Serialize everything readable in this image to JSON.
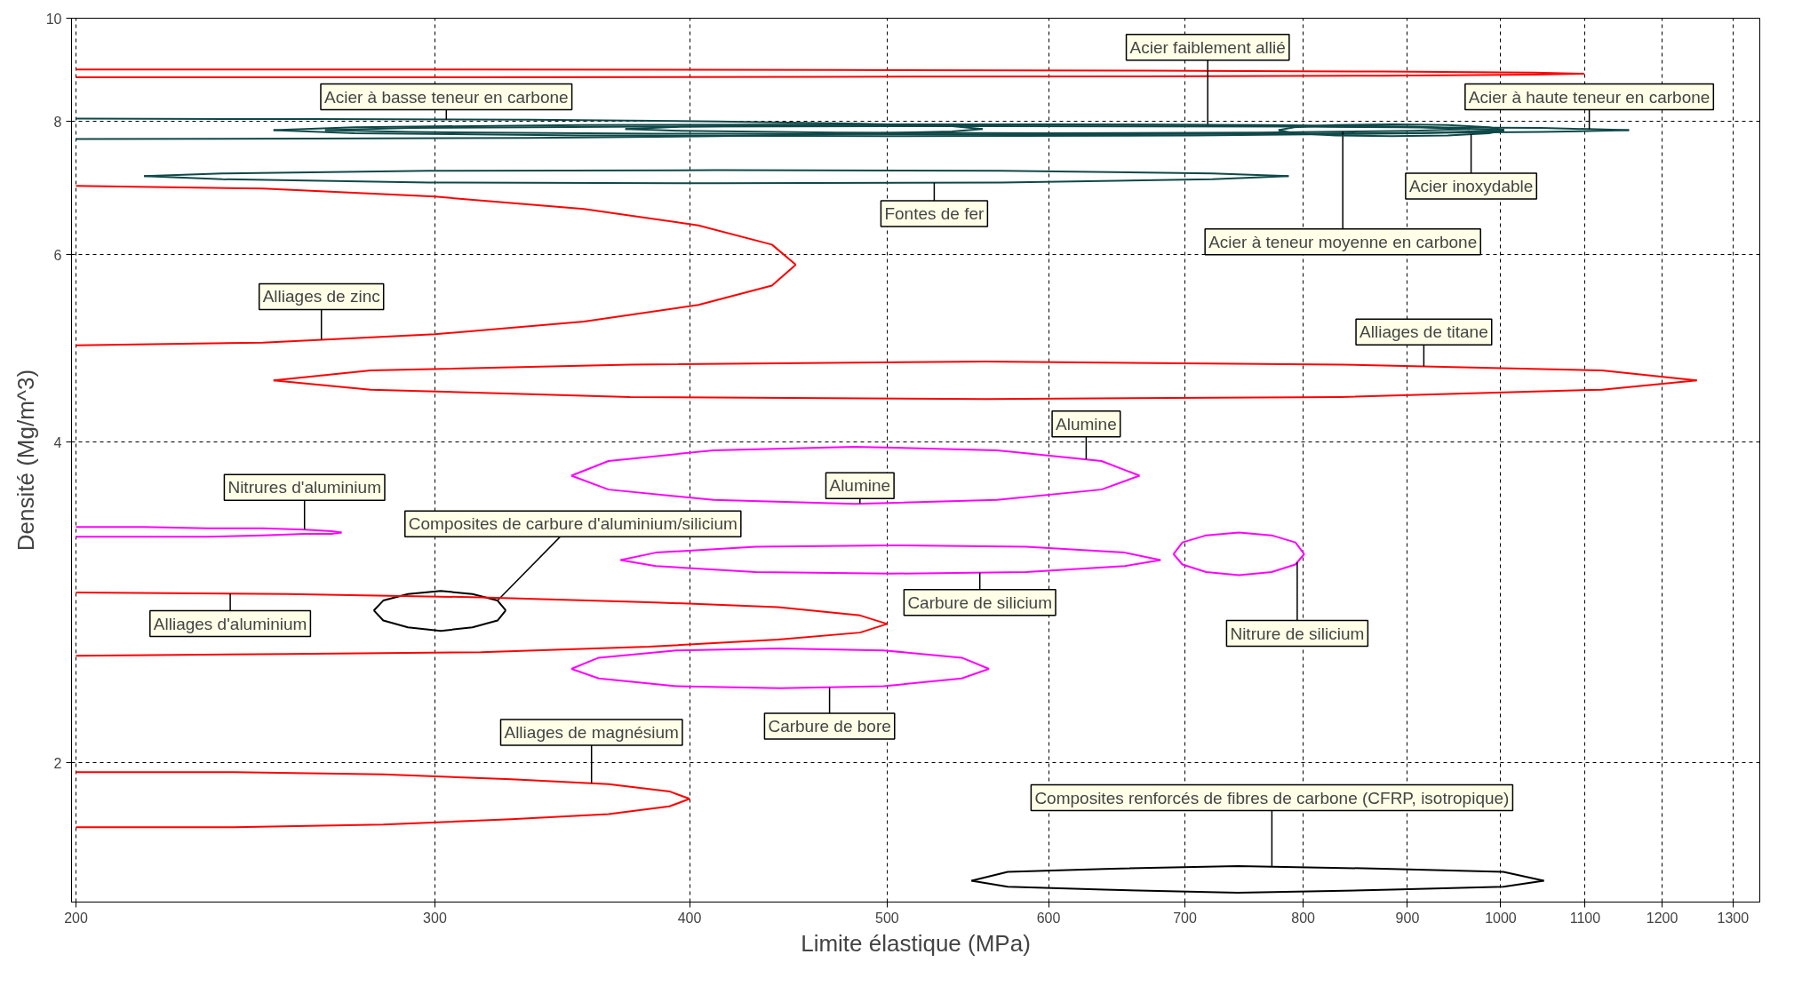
{
  "chart_data": {
    "type": "line",
    "xlabel": "Limite élastique (MPa)",
    "ylabel": "Densité (Mg/m^3)",
    "log": "xy",
    "xlim": [
      199,
      1340
    ],
    "ylim": [
      1.48,
      10
    ],
    "xticks": [
      200,
      300,
      400,
      500,
      600,
      700,
      800,
      900,
      1000,
      1100,
      1200,
      1300
    ],
    "yticks": [
      2,
      4,
      6,
      8,
      10
    ],
    "grid": true,
    "series": [
      {
        "color": "#ff0000",
        "x": [
          200,
          311,
          469,
          667,
          875,
          1038,
          1099
        ],
        "values": [
          8.95,
          8.95,
          8.94,
          8.93,
          8.91,
          8.89,
          8.87
        ]
      },
      {
        "color": "#ff0000",
        "x": [
          200,
          311,
          469,
          667,
          875,
          1038,
          1099
        ],
        "values": [
          8.8,
          8.8,
          8.81,
          8.82,
          8.83,
          8.85,
          8.87
        ]
      },
      {
        "name": "Acier à basse teneur en carbone",
        "color": "#0f4848",
        "x": [
          200,
          261,
          334,
          413,
          485,
          538,
          557
        ],
        "values": [
          8.05,
          8.04,
          8.03,
          8.0,
          7.96,
          7.92,
          7.87
        ]
      },
      {
        "color": "#0f4848",
        "x": [
          200,
          261,
          334,
          413,
          485,
          538,
          557
        ],
        "values": [
          7.7,
          7.71,
          7.72,
          7.75,
          7.79,
          7.83,
          7.87
        ]
      },
      {
        "name": "Acier faiblement allié",
        "color": "#0f4848",
        "x": [
          250,
          274,
          354,
          500,
          708,
          914,
          1004
        ],
        "values": [
          7.85,
          7.9,
          7.94,
          7.95,
          7.94,
          7.9,
          7.85
        ]
      },
      {
        "color": "#0f4848",
        "x": [
          250,
          274,
          354,
          500,
          708,
          914,
          1004
        ],
        "values": [
          7.85,
          7.8,
          7.76,
          7.75,
          7.76,
          7.8,
          7.85
        ]
      },
      {
        "name": "Acier à haute teneur en carbone",
        "color": "#0f4848",
        "x": [
          265,
          292,
          383,
          553,
          799,
          1047,
          1156
        ],
        "values": [
          7.85,
          7.89,
          7.91,
          7.92,
          7.91,
          7.89,
          7.85
        ]
      },
      {
        "color": "#0f4848",
        "x": [
          265,
          292,
          383,
          553,
          799,
          1047,
          1156
        ],
        "values": [
          7.85,
          7.82,
          7.79,
          7.78,
          7.79,
          7.82,
          7.85
        ]
      },
      {
        "color": "#0f4848",
        "x": [
          372,
          396,
          472,
          600,
          761,
          906,
          966
        ],
        "values": [
          7.87,
          7.91,
          7.94,
          7.95,
          7.94,
          7.91,
          7.87
        ]
      },
      {
        "name": "Acier à teneur moyenne en carbone",
        "color": "#0f4848",
        "x": [
          372,
          396,
          472,
          600,
          761,
          906,
          966
        ],
        "values": [
          7.87,
          7.84,
          7.81,
          7.8,
          7.81,
          7.84,
          7.87
        ]
      },
      {
        "color": "#0f4848",
        "x": [
          778,
          792,
          830,
          884,
          942,
          987,
          1004
        ],
        "values": [
          7.85,
          7.9,
          7.94,
          7.95,
          7.94,
          7.9,
          7.85
        ]
      },
      {
        "name": "Acier inoxydable",
        "color": "#0f4848",
        "x": [
          778,
          792,
          830,
          884,
          942,
          987,
          1004
        ],
        "values": [
          7.85,
          7.8,
          7.76,
          7.75,
          7.76,
          7.8,
          7.85
        ]
      },
      {
        "color": "#0f4848",
        "x": [
          216,
          236,
          298,
          412,
          569,
          722,
          787
        ],
        "values": [
          7.11,
          7.15,
          7.19,
          7.2,
          7.19,
          7.15,
          7.11
        ]
      },
      {
        "name": "Fontes de fer",
        "color": "#0f4848",
        "x": [
          216,
          236,
          298,
          412,
          569,
          722,
          787
        ],
        "values": [
          7.11,
          7.06,
          7.01,
          7.0,
          7.01,
          7.06,
          7.11
        ]
      },
      {
        "color": "#ff0000",
        "x": [
          200,
          247,
          300,
          355,
          404,
          439,
          451
        ],
        "values": [
          6.96,
          6.92,
          6.8,
          6.62,
          6.39,
          6.13,
          5.87
        ]
      },
      {
        "name": "Alliages de zinc",
        "color": "#ff0000",
        "x": [
          200,
          247,
          300,
          355,
          404,
          439,
          451
        ],
        "values": [
          4.93,
          4.96,
          5.05,
          5.19,
          5.38,
          5.61,
          5.87
        ]
      },
      {
        "name": "Alliages de titane",
        "color": "#ff0000",
        "x": [
          250,
          279,
          374,
          559,
          835,
          1121,
          1248
        ],
        "values": [
          4.57,
          4.67,
          4.73,
          4.76,
          4.73,
          4.67,
          4.57
        ]
      },
      {
        "color": "#ff0000",
        "x": [
          250,
          279,
          374,
          559,
          835,
          1121,
          1248
        ],
        "values": [
          4.57,
          4.48,
          4.41,
          4.39,
          4.41,
          4.48,
          4.57
        ]
      },
      {
        "name": "Alumine",
        "color": "#ff00ff",
        "x": [
          350,
          365,
          411,
          482,
          566,
          637,
          665
        ],
        "values": [
          3.72,
          3.84,
          3.93,
          3.96,
          3.93,
          3.84,
          3.72
        ]
      },
      {
        "name": "Alumine",
        "color": "#ff00ff",
        "x": [
          350,
          365,
          411,
          482,
          566,
          637,
          665
        ],
        "values": [
          3.72,
          3.61,
          3.53,
          3.5,
          3.53,
          3.61,
          3.72
        ]
      },
      {
        "name": "Nitrures d'aluminium",
        "color": "#ff00ff",
        "x": [
          200,
          216,
          232,
          247,
          259,
          267,
          270
        ],
        "values": [
          3.33,
          3.33,
          3.32,
          3.32,
          3.31,
          3.3,
          3.29
        ]
      },
      {
        "color": "#ff00ff",
        "x": [
          200,
          216,
          232,
          247,
          259,
          267,
          270
        ],
        "values": [
          3.26,
          3.26,
          3.26,
          3.27,
          3.28,
          3.28,
          3.29
        ]
      },
      {
        "color": "#ff00ff",
        "x": [
          370,
          385,
          431,
          502,
          585,
          654,
          681
        ],
        "values": [
          3.1,
          3.15,
          3.19,
          3.2,
          3.19,
          3.15,
          3.1
        ]
      },
      {
        "name": "Carbure de silicium",
        "color": "#ff00ff",
        "x": [
          370,
          385,
          431,
          502,
          585,
          654,
          681
        ],
        "values": [
          3.1,
          3.06,
          3.02,
          3.01,
          3.02,
          3.06,
          3.1
        ]
      },
      {
        "color": "#ff00ff",
        "x": [
          691,
          698,
          717,
          744,
          772,
          793,
          801
        ],
        "values": [
          3.14,
          3.22,
          3.27,
          3.29,
          3.27,
          3.22,
          3.14
        ]
      },
      {
        "name": "Nitrure de silicium",
        "color": "#ff00ff",
        "x": [
          691,
          698,
          717,
          744,
          772,
          793,
          801
        ],
        "values": [
          3.14,
          3.07,
          3.02,
          3.0,
          3.02,
          3.07,
          3.14
        ]
      },
      {
        "name": "Composites de carbure d'aluminium/silicium",
        "color": "#000000",
        "x": [
          280,
          283,
          291,
          302,
          313,
          322,
          325
        ],
        "values": [
          2.78,
          2.84,
          2.88,
          2.9,
          2.88,
          2.84,
          2.78
        ]
      },
      {
        "color": "#000000",
        "x": [
          280,
          283,
          291,
          302,
          313,
          322,
          325
        ],
        "values": [
          2.78,
          2.72,
          2.68,
          2.66,
          2.68,
          2.72,
          2.78
        ]
      },
      {
        "name": "Alliages d'aluminium",
        "color": "#ff0000",
        "x": [
          200,
          254,
          316,
          382,
          442,
          485,
          500
        ],
        "values": [
          2.89,
          2.88,
          2.86,
          2.83,
          2.8,
          2.75,
          2.7
        ]
      },
      {
        "color": "#ff0000",
        "x": [
          200,
          254,
          316,
          382,
          442,
          485,
          500
        ],
        "values": [
          2.52,
          2.53,
          2.54,
          2.57,
          2.61,
          2.65,
          2.7
        ]
      },
      {
        "color": "#ff00ff",
        "x": [
          350,
          361,
          394,
          443,
          498,
          544,
          561
        ],
        "values": [
          2.45,
          2.51,
          2.55,
          2.56,
          2.55,
          2.51,
          2.45
        ]
      },
      {
        "name": "Carbure de bore",
        "color": "#ff00ff",
        "x": [
          350,
          361,
          394,
          443,
          498,
          544,
          561
        ],
        "values": [
          2.45,
          2.4,
          2.36,
          2.35,
          2.36,
          2.4,
          2.45
        ]
      },
      {
        "name": "Alliages de magnésium",
        "color": "#ff0000",
        "x": [
          200,
          239,
          283,
          327,
          365,
          391,
          400
        ],
        "values": [
          1.96,
          1.96,
          1.95,
          1.93,
          1.91,
          1.88,
          1.85
        ]
      },
      {
        "color": "#ff0000",
        "x": [
          200,
          239,
          283,
          327,
          365,
          391,
          400
        ],
        "values": [
          1.74,
          1.74,
          1.75,
          1.77,
          1.79,
          1.82,
          1.85
        ]
      },
      {
        "name": "Composites renforcés de fibres de carbone (CFRP, isotropique)",
        "color": "#000000",
        "x": [
          550,
          573,
          639,
          743,
          884,
          1003,
          1050
        ],
        "values": [
          1.55,
          1.58,
          1.59,
          1.6,
          1.59,
          1.58,
          1.55
        ]
      },
      {
        "color": "#000000",
        "x": [
          550,
          573,
          639,
          743,
          884,
          1003,
          1050
        ],
        "values": [
          1.55,
          1.53,
          1.52,
          1.51,
          1.52,
          1.53,
          1.55
        ]
      }
    ]
  }
}
